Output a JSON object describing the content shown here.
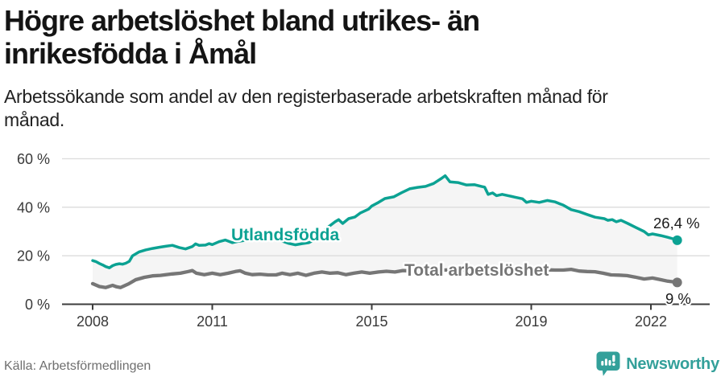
{
  "header": {
    "title": "Högre arbetslöshet bland utrikes- än\ninrikesfödda i Åmål",
    "subtitle": "Arbetssökande som andel av den registerbaserade arbetskraften månad för\nmånad."
  },
  "footer": {
    "source": "Källa: Arbetsförmedlingen",
    "brand": "Newsworthy",
    "brand_icon": "newsworthy-pin-with-bar-chart"
  },
  "colors": {
    "accent_teal": "#0ca293",
    "series_gray": "#767676",
    "gridline": "#dcdcdc",
    "axis": "#3c3c3c",
    "band_fill": "#f5f5f5",
    "value_label_text": "#1a1a1a",
    "axis_text": "#3a3a3a",
    "source_text": "#6f6f6f",
    "logo_teal": "#33a09a"
  },
  "chart_data": {
    "type": "line",
    "title": "Högre arbetslöshet bland utrikes- än inrikesfödda i Åmål",
    "subtitle": "Arbetssökande som andel av den registerbaserade arbetskraften månad för månad.",
    "unit": "%",
    "x_ticks": [
      2008,
      2011,
      2015,
      2019,
      2022
    ],
    "x_tick_labels": [
      "2008",
      "2011",
      "2015",
      "2019",
      "2022"
    ],
    "y_ticks": [
      0,
      20,
      40,
      60
    ],
    "y_tick_labels": [
      "0 %",
      "20 %",
      "40 %",
      "60 %"
    ],
    "ylim": [
      0,
      60
    ],
    "grid": true,
    "band_fill_between_series": true,
    "legend_position": "inline-labels",
    "series": [
      {
        "name": "Utlandsfödda",
        "color": "#0ca293",
        "end_value": 26.4,
        "end_label": "26,4 %",
        "points": [
          [
            2008.0,
            18.0
          ],
          [
            2008.08,
            17.6
          ],
          [
            2008.17,
            16.8
          ],
          [
            2008.25,
            16.2
          ],
          [
            2008.33,
            15.5
          ],
          [
            2008.42,
            15.0
          ],
          [
            2008.5,
            15.9
          ],
          [
            2008.58,
            16.4
          ],
          [
            2008.67,
            16.7
          ],
          [
            2008.75,
            16.5
          ],
          [
            2008.83,
            16.9
          ],
          [
            2008.92,
            17.7
          ],
          [
            2009.0,
            20.0
          ],
          [
            2009.17,
            21.6
          ],
          [
            2009.33,
            22.4
          ],
          [
            2009.5,
            23.0
          ],
          [
            2009.67,
            23.5
          ],
          [
            2009.83,
            23.9
          ],
          [
            2010.0,
            24.3
          ],
          [
            2010.17,
            23.4
          ],
          [
            2010.33,
            22.8
          ],
          [
            2010.5,
            23.8
          ],
          [
            2010.58,
            24.9
          ],
          [
            2010.67,
            24.3
          ],
          [
            2010.83,
            24.4
          ],
          [
            2010.92,
            25.0
          ],
          [
            2011.0,
            24.6
          ],
          [
            2011.17,
            25.8
          ],
          [
            2011.33,
            26.5
          ],
          [
            2011.5,
            25.4
          ],
          [
            2011.67,
            26.0
          ],
          [
            2011.83,
            26.4
          ],
          [
            2011.92,
            26.6
          ],
          [
            2012.08,
            27.0
          ],
          [
            2012.25,
            26.6
          ],
          [
            2012.42,
            26.7
          ],
          [
            2012.58,
            27.6
          ],
          [
            2012.75,
            26.1
          ],
          [
            2012.92,
            25.1
          ],
          [
            2013.08,
            24.5
          ],
          [
            2013.25,
            25.0
          ],
          [
            2013.42,
            25.4
          ],
          [
            2013.58,
            26.8
          ],
          [
            2013.75,
            29.5
          ],
          [
            2013.92,
            32.0
          ],
          [
            2014.08,
            34.0
          ],
          [
            2014.17,
            34.9
          ],
          [
            2014.27,
            33.3
          ],
          [
            2014.42,
            35.3
          ],
          [
            2014.58,
            36.0
          ],
          [
            2014.71,
            37.6
          ],
          [
            2014.92,
            39.2
          ],
          [
            2015.0,
            40.5
          ],
          [
            2015.17,
            42.0
          ],
          [
            2015.33,
            43.6
          ],
          [
            2015.55,
            44.3
          ],
          [
            2015.75,
            46.0
          ],
          [
            2015.95,
            47.6
          ],
          [
            2016.15,
            48.2
          ],
          [
            2016.35,
            48.6
          ],
          [
            2016.55,
            49.8
          ],
          [
            2016.75,
            51.9
          ],
          [
            2016.84,
            53.0
          ],
          [
            2016.96,
            50.5
          ],
          [
            2017.16,
            50.2
          ],
          [
            2017.37,
            49.2
          ],
          [
            2017.58,
            49.3
          ],
          [
            2017.75,
            48.6
          ],
          [
            2017.83,
            48.3
          ],
          [
            2017.92,
            45.3
          ],
          [
            2018.03,
            45.9
          ],
          [
            2018.13,
            44.8
          ],
          [
            2018.27,
            45.3
          ],
          [
            2018.42,
            44.8
          ],
          [
            2018.58,
            44.2
          ],
          [
            2018.78,
            43.5
          ],
          [
            2018.88,
            42.0
          ],
          [
            2019.0,
            42.5
          ],
          [
            2019.2,
            42.0
          ],
          [
            2019.4,
            42.8
          ],
          [
            2019.6,
            42.2
          ],
          [
            2019.7,
            41.5
          ],
          [
            2019.8,
            40.9
          ],
          [
            2020.0,
            39.0
          ],
          [
            2020.2,
            38.2
          ],
          [
            2020.42,
            36.9
          ],
          [
            2020.6,
            35.9
          ],
          [
            2020.83,
            35.3
          ],
          [
            2020.92,
            34.6
          ],
          [
            2021.03,
            34.9
          ],
          [
            2021.13,
            34.0
          ],
          [
            2021.25,
            34.6
          ],
          [
            2021.42,
            33.3
          ],
          [
            2021.63,
            31.6
          ],
          [
            2021.83,
            30.0
          ],
          [
            2021.94,
            28.6
          ],
          [
            2022.04,
            29.0
          ],
          [
            2022.25,
            28.3
          ],
          [
            2022.42,
            27.6
          ],
          [
            2022.55,
            27.0
          ],
          [
            2022.66,
            26.4
          ]
        ]
      },
      {
        "name": "Total arbetslöshet",
        "color": "#767676",
        "end_value": 9,
        "end_label": "9 %",
        "points": [
          [
            2008.0,
            8.5
          ],
          [
            2008.17,
            7.3
          ],
          [
            2008.33,
            6.9
          ],
          [
            2008.5,
            7.8
          ],
          [
            2008.6,
            7.2
          ],
          [
            2008.7,
            6.9
          ],
          [
            2008.9,
            8.4
          ],
          [
            2009.08,
            10.1
          ],
          [
            2009.3,
            11.1
          ],
          [
            2009.5,
            11.7
          ],
          [
            2009.7,
            11.9
          ],
          [
            2010.0,
            12.5
          ],
          [
            2010.2,
            12.8
          ],
          [
            2010.4,
            13.5
          ],
          [
            2010.5,
            13.9
          ],
          [
            2010.6,
            12.8
          ],
          [
            2010.8,
            12.2
          ],
          [
            2011.0,
            12.8
          ],
          [
            2011.2,
            12.2
          ],
          [
            2011.4,
            12.8
          ],
          [
            2011.58,
            13.5
          ],
          [
            2011.7,
            13.8
          ],
          [
            2011.83,
            12.8
          ],
          [
            2012.0,
            12.2
          ],
          [
            2012.2,
            12.4
          ],
          [
            2012.4,
            12.1
          ],
          [
            2012.6,
            12.1
          ],
          [
            2012.75,
            12.8
          ],
          [
            2012.95,
            12.2
          ],
          [
            2013.15,
            12.8
          ],
          [
            2013.35,
            11.9
          ],
          [
            2013.55,
            12.8
          ],
          [
            2013.75,
            13.3
          ],
          [
            2013.95,
            12.8
          ],
          [
            2014.15,
            13.0
          ],
          [
            2014.35,
            12.2
          ],
          [
            2014.55,
            12.8
          ],
          [
            2014.75,
            13.3
          ],
          [
            2014.95,
            12.8
          ],
          [
            2015.17,
            13.3
          ],
          [
            2015.37,
            13.6
          ],
          [
            2015.58,
            13.3
          ],
          [
            2015.78,
            13.9
          ],
          [
            2016.0,
            13.7
          ],
          [
            2016.2,
            13.9
          ],
          [
            2016.4,
            13.8
          ],
          [
            2016.6,
            14.0
          ],
          [
            2016.8,
            14.1
          ],
          [
            2017.0,
            14.2
          ],
          [
            2017.2,
            14.0
          ],
          [
            2017.4,
            14.1
          ],
          [
            2017.6,
            13.9
          ],
          [
            2017.8,
            13.8
          ],
          [
            2018.0,
            13.9
          ],
          [
            2018.2,
            14.0
          ],
          [
            2018.4,
            13.8
          ],
          [
            2018.6,
            13.9
          ],
          [
            2018.8,
            14.0
          ],
          [
            2019.0,
            14.0
          ],
          [
            2019.2,
            14.1
          ],
          [
            2019.4,
            14.2
          ],
          [
            2019.6,
            14.1
          ],
          [
            2019.8,
            14.1
          ],
          [
            2020.0,
            14.4
          ],
          [
            2020.2,
            13.7
          ],
          [
            2020.4,
            13.5
          ],
          [
            2020.6,
            13.4
          ],
          [
            2020.8,
            12.8
          ],
          [
            2021.0,
            12.1
          ],
          [
            2021.2,
            12.0
          ],
          [
            2021.4,
            11.8
          ],
          [
            2021.6,
            11.2
          ],
          [
            2021.83,
            10.4
          ],
          [
            2022.04,
            10.8
          ],
          [
            2022.25,
            10.1
          ],
          [
            2022.42,
            9.5
          ],
          [
            2022.66,
            9.0
          ]
        ]
      }
    ]
  }
}
